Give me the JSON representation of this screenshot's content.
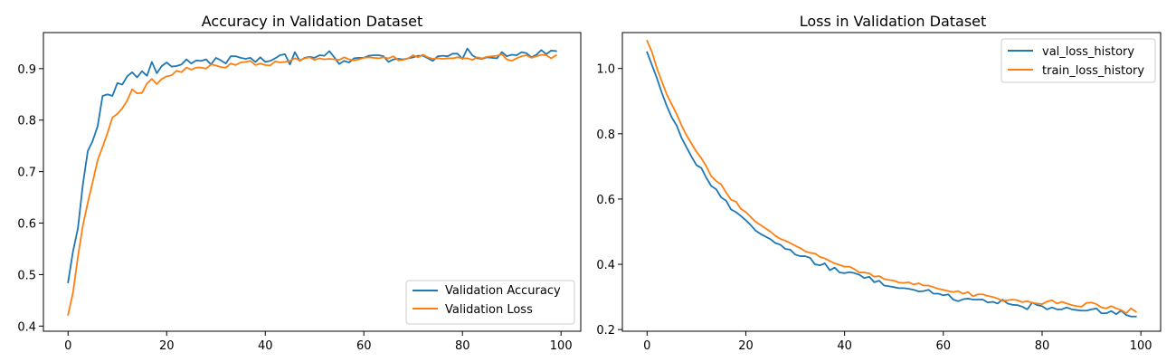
{
  "colors": {
    "series_1": "#1f77b4",
    "series_2": "#ff7f0e"
  },
  "chart_data": [
    {
      "type": "line",
      "title": "Accuracy in Validation Dataset",
      "xlabel": "",
      "ylabel": "",
      "xlim": [
        -5,
        104
      ],
      "ylim": [
        0.39,
        0.97
      ],
      "xticks": [
        0,
        20,
        40,
        60,
        80,
        100
      ],
      "yticks": [
        0.4,
        0.5,
        0.6,
        0.7,
        0.8,
        0.9
      ],
      "ytick_labels": [
        "0.4",
        "0.5",
        "0.6",
        "0.7",
        "0.8",
        "0.9"
      ],
      "grid": false,
      "legend_position": "lower-right",
      "series": [
        {
          "name": "Validation Accuracy",
          "color": "#1f77b4",
          "x": [
            0,
            1,
            2,
            3,
            4,
            5,
            6,
            7,
            8,
            9,
            10,
            11,
            12,
            13,
            14,
            15,
            16,
            17,
            18,
            19,
            20,
            21,
            22,
            23,
            24,
            25,
            26,
            27,
            28,
            29,
            30,
            31,
            32,
            33,
            34,
            35,
            36,
            37,
            38,
            39,
            40,
            41,
            42,
            43,
            44,
            45,
            46,
            47,
            48,
            49,
            50,
            51,
            52,
            53,
            54,
            55,
            56,
            57,
            58,
            59,
            60,
            61,
            62,
            63,
            64,
            65,
            66,
            67,
            68,
            69,
            70,
            71,
            72,
            73,
            74,
            75,
            76,
            77,
            78,
            79,
            80,
            81,
            82,
            83,
            84,
            85,
            86,
            87,
            88,
            89,
            90,
            91,
            92,
            93,
            94,
            95,
            96,
            97,
            98,
            99
          ],
          "values": [
            0.485,
            0.545,
            0.59,
            0.675,
            0.74,
            0.76,
            0.788,
            0.847,
            0.85,
            0.847,
            0.872,
            0.869,
            0.885,
            0.893,
            0.883,
            0.895,
            0.886,
            0.913,
            0.891,
            0.905,
            0.912,
            0.904,
            0.905,
            0.908,
            0.918,
            0.91,
            0.916,
            0.915,
            0.918,
            0.908,
            0.921,
            0.916,
            0.91,
            0.924,
            0.924,
            0.921,
            0.919,
            0.921,
            0.913,
            0.922,
            0.913,
            0.915,
            0.92,
            0.926,
            0.928,
            0.908,
            0.932,
            0.915,
            0.921,
            0.923,
            0.921,
            0.926,
            0.925,
            0.934,
            0.922,
            0.909,
            0.915,
            0.912,
            0.92,
            0.921,
            0.921,
            0.925,
            0.926,
            0.926,
            0.924,
            0.913,
            0.918,
            0.919,
            0.918,
            0.92,
            0.922,
            0.925,
            0.925,
            0.92,
            0.915,
            0.924,
            0.925,
            0.924,
            0.929,
            0.929,
            0.919,
            0.939,
            0.926,
            0.92,
            0.919,
            0.922,
            0.921,
            0.92,
            0.932,
            0.924,
            0.927,
            0.926,
            0.932,
            0.93,
            0.922,
            0.927,
            0.936,
            0.928,
            0.935,
            0.934
          ]
        },
        {
          "name": "Validation Loss",
          "color": "#ff7f0e",
          "x": [
            0,
            1,
            2,
            3,
            4,
            5,
            6,
            7,
            8,
            9,
            10,
            11,
            12,
            13,
            14,
            15,
            16,
            17,
            18,
            19,
            20,
            21,
            22,
            23,
            24,
            25,
            26,
            27,
            28,
            29,
            30,
            31,
            32,
            33,
            34,
            35,
            36,
            37,
            38,
            39,
            40,
            41,
            42,
            43,
            44,
            45,
            46,
            47,
            48,
            49,
            50,
            51,
            52,
            53,
            54,
            55,
            56,
            57,
            58,
            59,
            60,
            61,
            62,
            63,
            64,
            65,
            66,
            67,
            68,
            69,
            70,
            71,
            72,
            73,
            74,
            75,
            76,
            77,
            78,
            79,
            80,
            81,
            82,
            83,
            84,
            85,
            86,
            87,
            88,
            89,
            90,
            91,
            92,
            93,
            94,
            95,
            96,
            97,
            98,
            99
          ],
          "values": [
            0.422,
            0.465,
            0.535,
            0.595,
            0.64,
            0.68,
            0.722,
            0.748,
            0.775,
            0.805,
            0.812,
            0.823,
            0.838,
            0.86,
            0.852,
            0.853,
            0.871,
            0.88,
            0.87,
            0.88,
            0.885,
            0.887,
            0.896,
            0.893,
            0.902,
            0.898,
            0.902,
            0.902,
            0.9,
            0.908,
            0.906,
            0.903,
            0.902,
            0.91,
            0.907,
            0.912,
            0.913,
            0.915,
            0.907,
            0.91,
            0.907,
            0.906,
            0.914,
            0.912,
            0.913,
            0.915,
            0.92,
            0.916,
            0.92,
            0.922,
            0.917,
            0.92,
            0.918,
            0.919,
            0.918,
            0.917,
            0.922,
            0.918,
            0.916,
            0.918,
            0.921,
            0.922,
            0.921,
            0.92,
            0.922,
            0.92,
            0.924,
            0.916,
            0.917,
            0.92,
            0.926,
            0.922,
            0.927,
            0.922,
            0.919,
            0.92,
            0.919,
            0.92,
            0.92,
            0.922,
            0.92,
            0.92,
            0.917,
            0.922,
            0.92,
            0.923,
            0.924,
            0.925,
            0.928,
            0.918,
            0.915,
            0.92,
            0.924,
            0.926,
            0.921,
            0.924,
            0.927,
            0.926,
            0.92,
            0.926
          ]
        }
      ]
    },
    {
      "type": "line",
      "title": "Loss in Validation Dataset",
      "xlabel": "",
      "ylabel": "",
      "xlim": [
        -5,
        104
      ],
      "ylim": [
        0.195,
        1.11
      ],
      "xticks": [
        0,
        20,
        40,
        60,
        80,
        100
      ],
      "yticks": [
        0.2,
        0.4,
        0.6,
        0.8,
        1.0
      ],
      "ytick_labels": [
        "0.2",
        "0.4",
        "0.6",
        "0.8",
        "1.0"
      ],
      "grid": false,
      "legend_position": "top-right",
      "series": [
        {
          "name": "val_loss_history",
          "color": "#1f77b4",
          "x": [
            0,
            1,
            2,
            3,
            4,
            5,
            6,
            7,
            8,
            9,
            10,
            11,
            12,
            13,
            14,
            15,
            16,
            17,
            18,
            19,
            20,
            21,
            22,
            23,
            24,
            25,
            26,
            27,
            28,
            29,
            30,
            31,
            32,
            33,
            34,
            35,
            36,
            37,
            38,
            39,
            40,
            41,
            42,
            43,
            44,
            45,
            46,
            47,
            48,
            49,
            50,
            51,
            52,
            53,
            54,
            55,
            56,
            57,
            58,
            59,
            60,
            61,
            62,
            63,
            64,
            65,
            66,
            67,
            68,
            69,
            70,
            71,
            72,
            73,
            74,
            75,
            76,
            77,
            78,
            79,
            80,
            81,
            82,
            83,
            84,
            85,
            86,
            87,
            88,
            89,
            90,
            91,
            92,
            93,
            94,
            95,
            96,
            97,
            98,
            99
          ],
          "values": [
            1.05,
            1.01,
            0.97,
            0.925,
            0.885,
            0.85,
            0.825,
            0.787,
            0.758,
            0.73,
            0.704,
            0.695,
            0.665,
            0.64,
            0.63,
            0.605,
            0.595,
            0.568,
            0.56,
            0.548,
            0.535,
            0.52,
            0.503,
            0.493,
            0.485,
            0.477,
            0.465,
            0.46,
            0.447,
            0.445,
            0.43,
            0.425,
            0.425,
            0.42,
            0.4,
            0.397,
            0.403,
            0.382,
            0.39,
            0.375,
            0.373,
            0.376,
            0.373,
            0.368,
            0.358,
            0.362,
            0.345,
            0.35,
            0.335,
            0.333,
            0.33,
            0.327,
            0.327,
            0.325,
            0.322,
            0.317,
            0.318,
            0.322,
            0.31,
            0.31,
            0.305,
            0.308,
            0.292,
            0.287,
            0.293,
            0.295,
            0.292,
            0.292,
            0.292,
            0.283,
            0.285,
            0.28,
            0.292,
            0.28,
            0.276,
            0.275,
            0.27,
            0.262,
            0.283,
            0.275,
            0.272,
            0.262,
            0.268,
            0.262,
            0.262,
            0.268,
            0.262,
            0.26,
            0.258,
            0.258,
            0.262,
            0.265,
            0.25,
            0.25,
            0.257,
            0.247,
            0.258,
            0.245,
            0.24,
            0.24
          ]
        },
        {
          "name": "train_loss_history",
          "color": "#ff7f0e",
          "x": [
            0,
            1,
            2,
            3,
            4,
            5,
            6,
            7,
            8,
            9,
            10,
            11,
            12,
            13,
            14,
            15,
            16,
            17,
            18,
            19,
            20,
            21,
            22,
            23,
            24,
            25,
            26,
            27,
            28,
            29,
            30,
            31,
            32,
            33,
            34,
            35,
            36,
            37,
            38,
            39,
            40,
            41,
            42,
            43,
            44,
            45,
            46,
            47,
            48,
            49,
            50,
            51,
            52,
            53,
            54,
            55,
            56,
            57,
            58,
            59,
            60,
            61,
            62,
            63,
            64,
            65,
            66,
            67,
            68,
            69,
            70,
            71,
            72,
            73,
            74,
            75,
            76,
            77,
            78,
            79,
            80,
            81,
            82,
            83,
            84,
            85,
            86,
            87,
            88,
            89,
            90,
            91,
            92,
            93,
            94,
            95,
            96,
            97,
            98,
            99
          ],
          "values": [
            1.085,
            1.05,
            1.0,
            0.96,
            0.92,
            0.89,
            0.86,
            0.825,
            0.795,
            0.77,
            0.745,
            0.725,
            0.7,
            0.67,
            0.655,
            0.645,
            0.62,
            0.598,
            0.592,
            0.57,
            0.56,
            0.545,
            0.53,
            0.52,
            0.51,
            0.5,
            0.487,
            0.478,
            0.472,
            0.465,
            0.457,
            0.45,
            0.44,
            0.435,
            0.433,
            0.423,
            0.418,
            0.41,
            0.403,
            0.398,
            0.393,
            0.393,
            0.385,
            0.375,
            0.375,
            0.372,
            0.362,
            0.364,
            0.355,
            0.352,
            0.35,
            0.344,
            0.343,
            0.345,
            0.338,
            0.342,
            0.335,
            0.335,
            0.33,
            0.325,
            0.322,
            0.318,
            0.315,
            0.318,
            0.31,
            0.315,
            0.302,
            0.308,
            0.308,
            0.303,
            0.3,
            0.295,
            0.288,
            0.29,
            0.292,
            0.29,
            0.284,
            0.287,
            0.282,
            0.28,
            0.278,
            0.286,
            0.29,
            0.28,
            0.285,
            0.28,
            0.275,
            0.272,
            0.27,
            0.282,
            0.283,
            0.278,
            0.268,
            0.265,
            0.272,
            0.265,
            0.26,
            0.25,
            0.265,
            0.255
          ]
        }
      ]
    }
  ]
}
